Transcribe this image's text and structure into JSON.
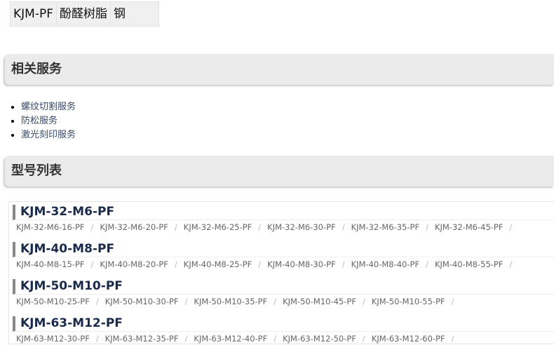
{
  "spec": {
    "cells": [
      "KJM-PF",
      "酚醛树脂",
      "钢"
    ]
  },
  "services": {
    "title": "相关服务",
    "items": [
      "螺纹切割服务",
      "防松服务",
      "激光刻印服务"
    ]
  },
  "models": {
    "title": "型号列表",
    "groups": [
      {
        "name": "KJM-32-M6-PF",
        "items": [
          "KJM-32-M6-16-PF",
          "KJM-32-M6-20-PF",
          "KJM-32-M6-25-PF",
          "KJM-32-M6-30-PF",
          "KJM-32-M6-35-PF",
          "KJM-32-M6-45-PF"
        ]
      },
      {
        "name": "KJM-40-M8-PF",
        "items": [
          "KJM-40-M8-15-PF",
          "KJM-40-M8-20-PF",
          "KJM-40-M8-25-PF",
          "KJM-40-M8-30-PF",
          "KJM-40-M8-40-PF",
          "KJM-40-M8-55-PF"
        ]
      },
      {
        "name": "KJM-50-M10-PF",
        "items": [
          "KJM-50-M10-25-PF",
          "KJM-50-M10-30-PF",
          "KJM-50-M10-35-PF",
          "KJM-50-M10-45-PF",
          "KJM-50-M10-55-PF"
        ]
      },
      {
        "name": "KJM-63-M12-PF",
        "items": [
          "KJM-63-M12-30-PF",
          "KJM-63-M12-35-PF",
          "KJM-63-M12-40-PF",
          "KJM-63-M12-50-PF",
          "KJM-63-M12-60-PF"
        ]
      }
    ],
    "separator": "/"
  }
}
